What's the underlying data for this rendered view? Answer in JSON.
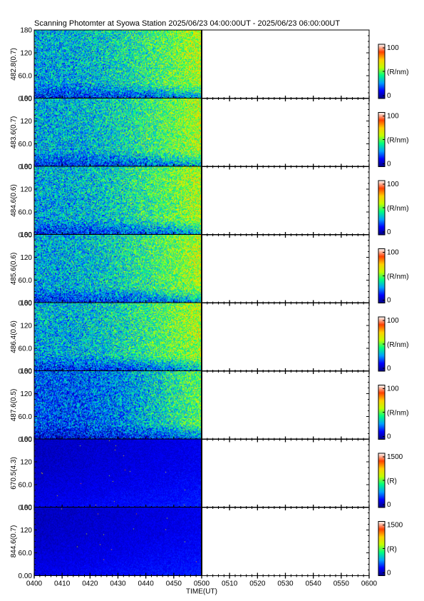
{
  "title": "Scanning Photomter at Syowa Station 2025/06/23 04:00:00UT - 2025/06/23 06:00:00UT",
  "chart_data": {
    "type": "heatmap",
    "xlabel": "TIME(UT)",
    "x_ticks": [
      "0400",
      "0410",
      "0420",
      "0430",
      "0440",
      "0450",
      "0500",
      "0510",
      "0520",
      "0530",
      "0540",
      "0550",
      "0600"
    ],
    "x_range": [
      "0400",
      "0600"
    ],
    "data_end": "0500",
    "y_ticks": [
      "0.00",
      "60.0",
      "120",
      "180"
    ],
    "y_range": [
      0,
      180
    ],
    "colormap": [
      "#000080",
      "#0000ff",
      "#00a0ff",
      "#00ff80",
      "#c0ff00",
      "#ffd000",
      "#ff4000",
      "#ffffff"
    ],
    "panels": [
      {
        "ylabel": "482.8(0.7)",
        "cmin": "0",
        "cmax": "100",
        "unit": "(R/nm)",
        "intensity": "moderate"
      },
      {
        "ylabel": "483.6(0.7)",
        "cmin": "0",
        "cmax": "100",
        "unit": "(R/nm)",
        "intensity": "moderate"
      },
      {
        "ylabel": "484.6(0.6)",
        "cmin": "0",
        "cmax": "100",
        "unit": "(R/nm)",
        "intensity": "moderate"
      },
      {
        "ylabel": "485.6(0.6)",
        "cmin": "0",
        "cmax": "100",
        "unit": "(R/nm)",
        "intensity": "moderate"
      },
      {
        "ylabel": "486.4(0.6)",
        "cmin": "0",
        "cmax": "100",
        "unit": "(R/nm)",
        "intensity": "moderate"
      },
      {
        "ylabel": "487.6(0.5)",
        "cmin": "0",
        "cmax": "100",
        "unit": "(R/nm)",
        "intensity": "low"
      },
      {
        "ylabel": "670.5(4.3)",
        "cmin": "0",
        "cmax": "1500",
        "unit": "(R)",
        "intensity": "very low"
      },
      {
        "ylabel": "844.6(0.7)",
        "cmin": "0",
        "cmax": "1500",
        "unit": "(R)",
        "intensity": "very low"
      }
    ]
  }
}
